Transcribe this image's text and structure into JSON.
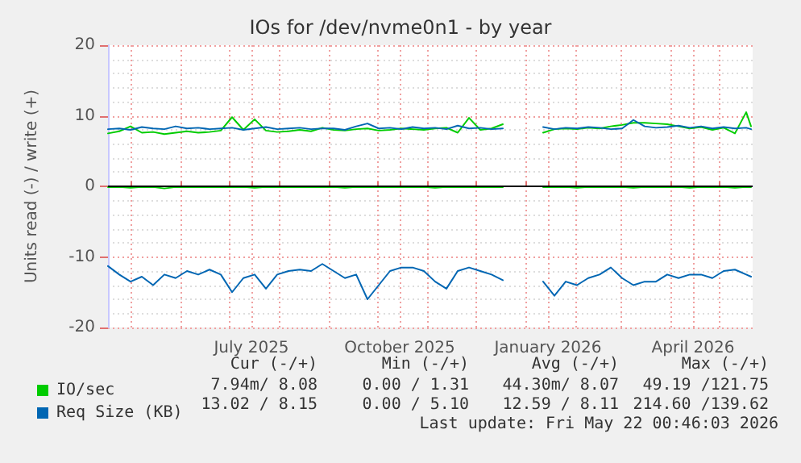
{
  "chart_data": {
    "type": "line",
    "title": "IOs for /dev/nvme0n1 - by year",
    "ylabel": "Units read (-) / write (+)",
    "x": [
      "2025-04-17",
      "2025-04-24",
      "2025-05-01",
      "2025-05-08",
      "2025-05-15",
      "2025-05-22",
      "2025-05-29",
      "2025-06-05",
      "2025-06-12",
      "2025-06-19",
      "2025-06-26",
      "2025-07-03",
      "2025-07-10",
      "2025-07-17",
      "2025-07-24",
      "2025-07-31",
      "2025-08-07",
      "2025-08-14",
      "2025-08-21",
      "2025-08-28",
      "2025-09-04",
      "2025-09-11",
      "2025-09-18",
      "2025-09-25",
      "2025-10-02",
      "2025-10-09",
      "2025-10-16",
      "2025-10-23",
      "2025-10-30",
      "2025-11-06",
      "2025-11-13",
      "2025-11-20",
      "2025-11-27",
      "2025-12-04",
      "2025-12-11",
      "2025-12-18",
      "2025-12-30",
      "2026-01-12",
      "2026-01-19",
      "2026-01-26",
      "2026-02-02",
      "2026-02-09",
      "2026-02-16",
      "2026-02-23",
      "2026-03-02",
      "2026-03-09",
      "2026-03-16",
      "2026-03-23",
      "2026-03-30",
      "2026-04-06",
      "2026-04-13",
      "2026-04-20",
      "2026-04-27",
      "2026-05-04",
      "2026-05-11",
      "2026-05-18",
      "2026-05-21"
    ],
    "series": [
      {
        "name": "IO/sec",
        "color": "#00cc00",
        "values": [
          7.5,
          7.8,
          8.5,
          7.6,
          7.7,
          7.4,
          7.6,
          7.8,
          7.6,
          7.7,
          7.9,
          9.8,
          8.0,
          9.5,
          7.9,
          7.7,
          7.8,
          8.0,
          7.8,
          8.3,
          8.0,
          7.9,
          8.1,
          8.2,
          7.9,
          8.0,
          8.2,
          8.1,
          8.0,
          8.2,
          8.3,
          7.6,
          9.7,
          8.0,
          8.2,
          8.8,
          null,
          7.6,
          8.1,
          8.2,
          8.1,
          8.3,
          8.2,
          8.5,
          8.7,
          9.0,
          9.0,
          8.9,
          8.8,
          8.5,
          8.2,
          8.4,
          8.0,
          8.3,
          7.5,
          10.5,
          8.5
        ]
      },
      {
        "color": "#00cc00",
        "values": [
          -0.1,
          -0.1,
          -0.2,
          -0.1,
          -0.1,
          -0.3,
          -0.1,
          -0.1,
          -0.1,
          -0.1,
          -0.1,
          -0.1,
          -0.1,
          -0.2,
          -0.1,
          -0.1,
          -0.1,
          -0.1,
          -0.1,
          -0.1,
          -0.1,
          -0.2,
          -0.1,
          -0.1,
          -0.1,
          -0.1,
          -0.1,
          -0.1,
          -0.1,
          -0.2,
          -0.1,
          -0.1,
          -0.1,
          -0.1,
          -0.1,
          -0.1,
          null,
          -0.1,
          -0.1,
          -0.1,
          -0.2,
          -0.1,
          -0.1,
          -0.1,
          -0.1,
          -0.2,
          -0.1,
          -0.1,
          -0.1,
          -0.1,
          -0.2,
          -0.1,
          -0.1,
          -0.1,
          -0.2,
          -0.1,
          -0.1
        ]
      },
      {
        "name": "Req Size (KB)",
        "color": "#0066b3",
        "values": [
          8.1,
          8.2,
          8.0,
          8.4,
          8.2,
          8.1,
          8.5,
          8.2,
          8.3,
          8.1,
          8.2,
          8.3,
          8.0,
          8.2,
          8.4,
          8.1,
          8.2,
          8.3,
          8.1,
          8.2,
          8.2,
          8.0,
          8.5,
          8.9,
          8.2,
          8.3,
          8.1,
          8.4,
          8.2,
          8.3,
          8.1,
          8.6,
          8.2,
          8.3,
          8.1,
          8.2,
          null,
          8.4,
          8.1,
          8.3,
          8.2,
          8.4,
          8.3,
          8.1,
          8.2,
          9.4,
          8.5,
          8.3,
          8.4,
          8.6,
          8.3,
          8.5,
          8.2,
          8.4,
          8.2,
          8.3,
          8.1
        ]
      },
      {
        "color": "#0066b3",
        "values": [
          -11.3,
          -12.5,
          -13.5,
          -12.8,
          -14.0,
          -12.5,
          -13.0,
          -12.0,
          -12.5,
          -11.8,
          -12.5,
          -15.0,
          -13.0,
          -12.5,
          -14.5,
          -12.5,
          -12.0,
          -11.8,
          -12.0,
          -11.0,
          -12.0,
          -13.0,
          -12.5,
          -16.0,
          -14.0,
          -12.0,
          -11.5,
          -11.5,
          -12.0,
          -13.5,
          -14.5,
          -12.0,
          -11.5,
          -12.0,
          -12.5,
          -13.3,
          null,
          -13.5,
          -15.5,
          -13.5,
          -14.0,
          -13.0,
          -12.5,
          -11.5,
          -13.0,
          -14.0,
          -13.5,
          -13.5,
          -12.5,
          -13.0,
          -12.5,
          -12.5,
          -13.0,
          -12.0,
          -11.8,
          -12.5,
          -12.8
        ]
      }
    ],
    "xlim": [
      "2025-04-17",
      "2026-05-22"
    ],
    "xticks": [
      {
        "value": "2025-05-01",
        "label": null
      },
      {
        "value": "2025-06-01",
        "label": null
      },
      {
        "value": "2025-07-01",
        "label": null
      },
      {
        "value": "2025-07-15",
        "label": "July 2025"
      },
      {
        "value": "2025-08-01",
        "label": null
      },
      {
        "value": "2025-09-01",
        "label": null
      },
      {
        "value": "2025-10-01",
        "label": null
      },
      {
        "value": "2025-10-15",
        "label": "October 2025"
      },
      {
        "value": "2025-11-01",
        "label": null
      },
      {
        "value": "2025-12-01",
        "label": null
      },
      {
        "value": "2026-01-01",
        "label": null
      },
      {
        "value": "2026-01-15",
        "label": "January 2026"
      },
      {
        "value": "2026-02-01",
        "label": null
      },
      {
        "value": "2026-03-01",
        "label": null
      },
      {
        "value": "2026-04-01",
        "label": null
      },
      {
        "value": "2026-04-15",
        "label": "April 2026"
      },
      {
        "value": "2026-05-01",
        "label": null
      }
    ],
    "ylim": [
      -20,
      20
    ],
    "yticks": [
      -20,
      -10,
      0,
      10,
      20
    ],
    "ref_lines": [
      {
        "axis": "y",
        "value": 0,
        "color": "#000000"
      }
    ],
    "grid": true,
    "legend": "bottom left",
    "marker": "none",
    "annotations": [
      "Cur (-/+)",
      "Min (-/+)",
      "Avg (-/+)",
      "Max (-/+)",
      "7.94m/ 8.08",
      "0.00 / 1.31",
      "44.30m/ 8.07",
      "49.19 /121.75",
      "13.02 / 8.15",
      "0.00 / 5.10",
      "12.59 / 8.11",
      "214.60 /139.62",
      "Last update: Fri May 22 00:46:03 2026"
    ]
  }
}
